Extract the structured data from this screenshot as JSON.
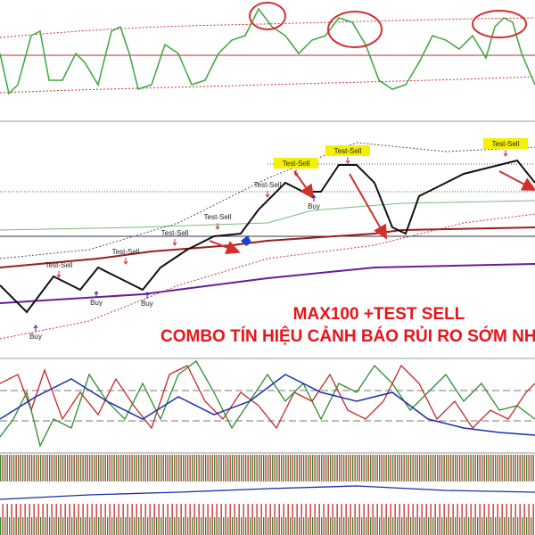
{
  "headline": {
    "line1": "MAX100 +TEST SELL",
    "line2": "COMBO TÍN HIỆU CẢNH BÁO RỦI RO SỚM NH"
  },
  "annotations": {
    "test_sell": [
      "Test-Sell",
      "Test-Sell",
      "Test-Sell",
      "Test-Sell",
      "Test-Sell",
      "Test-Sell",
      "Test-Sell",
      "Test-Sell"
    ],
    "buy": [
      "Buy",
      "Buy",
      "Buy",
      "Buy"
    ]
  }
}
